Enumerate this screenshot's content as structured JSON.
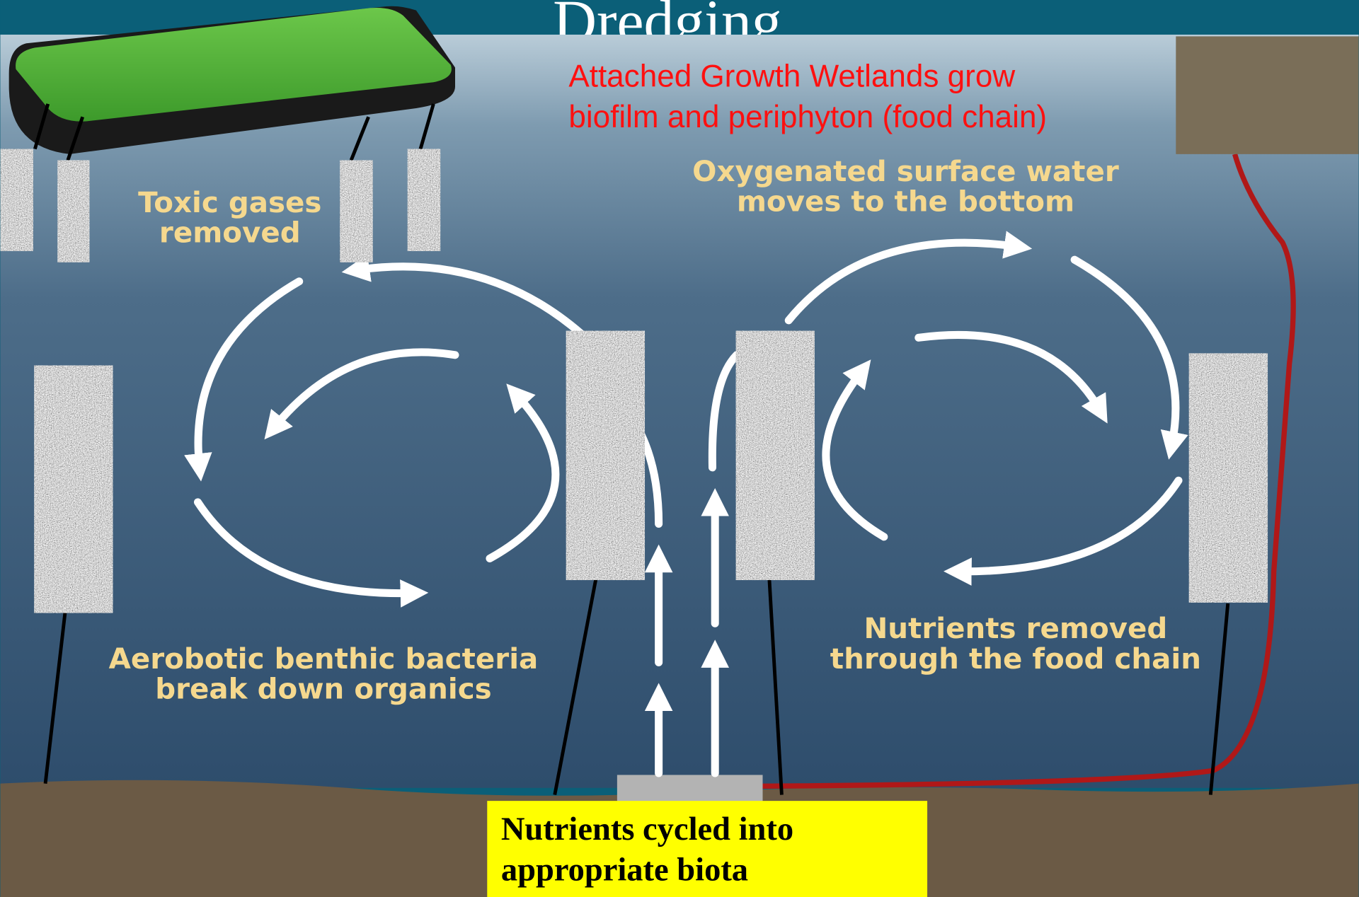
{
  "title": "Dredging",
  "callout": {
    "lines": [
      "Attached Growth Wetlands grow",
      "biofilm and periphyton (food chain)"
    ]
  },
  "labels": [
    {
      "lines": [
        "Toxic gases",
        "removed"
      ]
    },
    {
      "lines": [
        "Oxygenated surface water",
        "moves to the bottom"
      ]
    },
    {
      "lines": [
        "Aerobotic benthic bacteria",
        "break down organics"
      ]
    },
    {
      "lines": [
        "Nutrients removed",
        "through the food chain"
      ]
    }
  ],
  "note": {
    "lines": [
      "Nutrients cycled into",
      "appropriate biota"
    ]
  }
}
